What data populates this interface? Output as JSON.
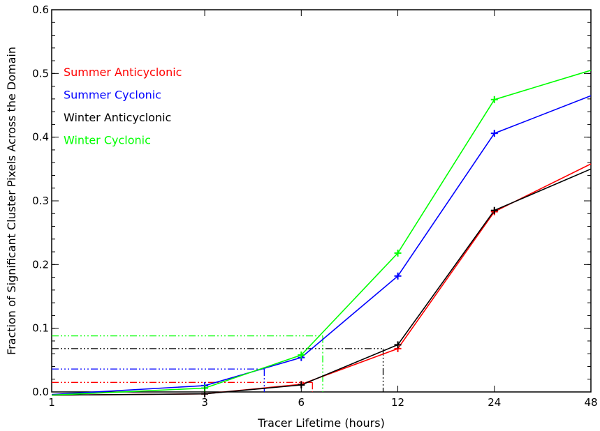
{
  "chart_data": {
    "type": "line",
    "xlabel": "Tracer Lifetime (hours)",
    "ylabel": "Fraction of Significant Cluster Pixels Across the Domain",
    "x": [
      1,
      3,
      6,
      12,
      24,
      48
    ],
    "x_scale": "log",
    "xlim": [
      1,
      48
    ],
    "ylim": [
      0,
      0.6
    ],
    "x_ticks": [
      "1",
      "3",
      "6",
      "12",
      "24",
      "48"
    ],
    "y_ticks": [
      "0.0",
      "0.1",
      "0.2",
      "0.3",
      "0.4",
      "0.5",
      "0.6"
    ],
    "grid": false,
    "legend_position": "upper-left",
    "series": [
      {
        "name": "Summer Anticyclonic",
        "color": "#ff0000",
        "values": [
          -0.005,
          -0.003,
          0.012,
          0.068,
          0.283,
          0.358
        ],
        "threshold": {
          "y": 0.015,
          "x": 6.5
        }
      },
      {
        "name": "Summer Cyclonic",
        "color": "#0000ff",
        "values": [
          -0.004,
          0.01,
          0.054,
          0.182,
          0.406,
          0.465
        ],
        "threshold": {
          "y": 0.036,
          "x": 4.6
        }
      },
      {
        "name": "Winter Anticyclonic",
        "color": "#000000",
        "values": [
          -0.005,
          -0.003,
          0.011,
          0.074,
          0.285,
          0.35
        ],
        "threshold": {
          "y": 0.068,
          "x": 10.8
        }
      },
      {
        "name": "Winter Cyclonic",
        "color": "#00ff00",
        "values": [
          -0.005,
          0.006,
          0.058,
          0.218,
          0.459,
          0.505
        ],
        "threshold": {
          "y": 0.088,
          "x": 7.0
        }
      }
    ]
  }
}
